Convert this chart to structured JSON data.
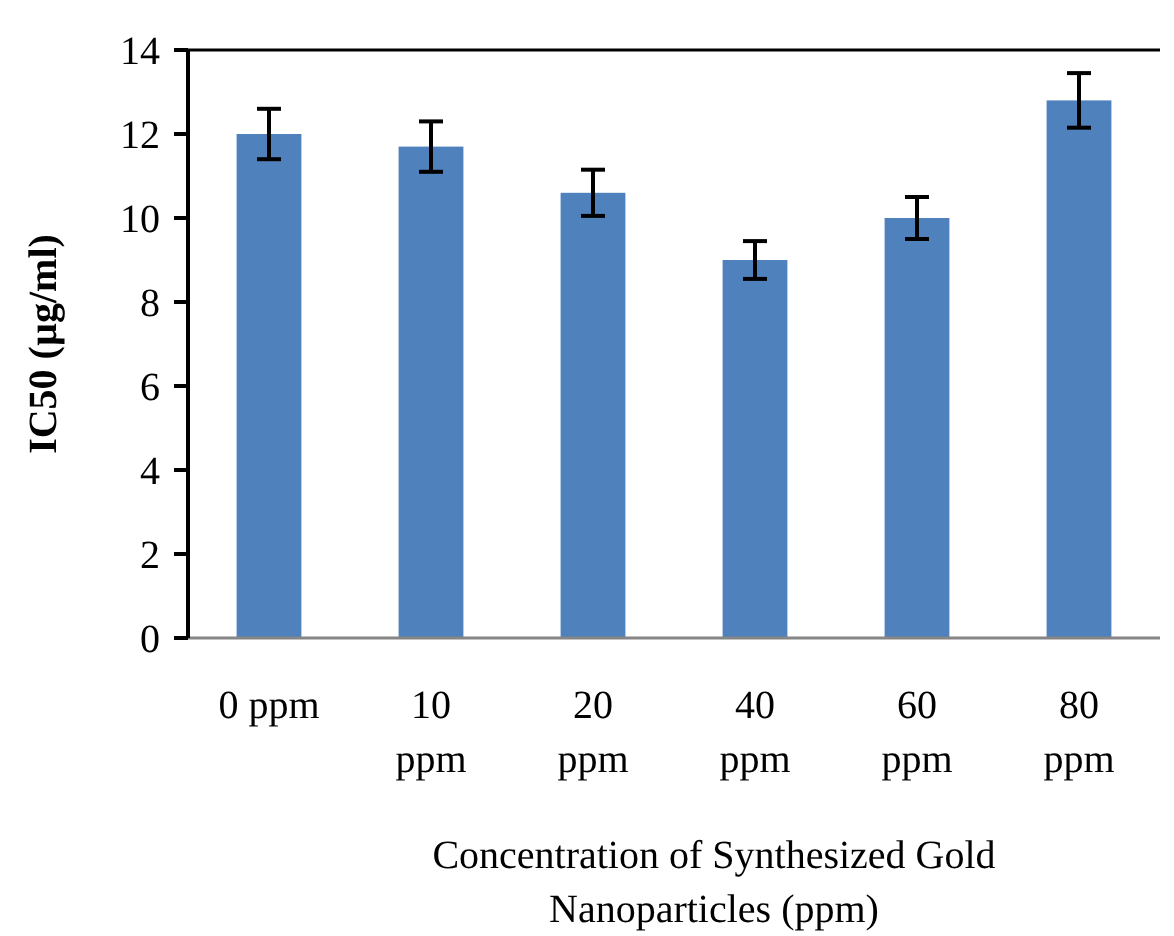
{
  "chart_data": {
    "type": "bar",
    "xlabel": "Concentration of Synthesized Gold Nanoparticles (ppm)",
    "ylabel": "IC50 (µg/ml)",
    "categories": [
      "0 ppm",
      "10 ppm",
      "20 ppm",
      "40 ppm",
      "60 ppm",
      "80 ppm"
    ],
    "values": [
      12,
      11.7,
      10.6,
      9,
      10,
      12.8
    ],
    "errors": [
      0.6,
      0.6,
      0.55,
      0.45,
      0.5,
      0.65
    ],
    "color": "#4f81bd",
    "ylim": [
      0,
      14
    ],
    "yticks": [
      0,
      2,
      4,
      6,
      8,
      10,
      12,
      14
    ],
    "grid": false
  }
}
